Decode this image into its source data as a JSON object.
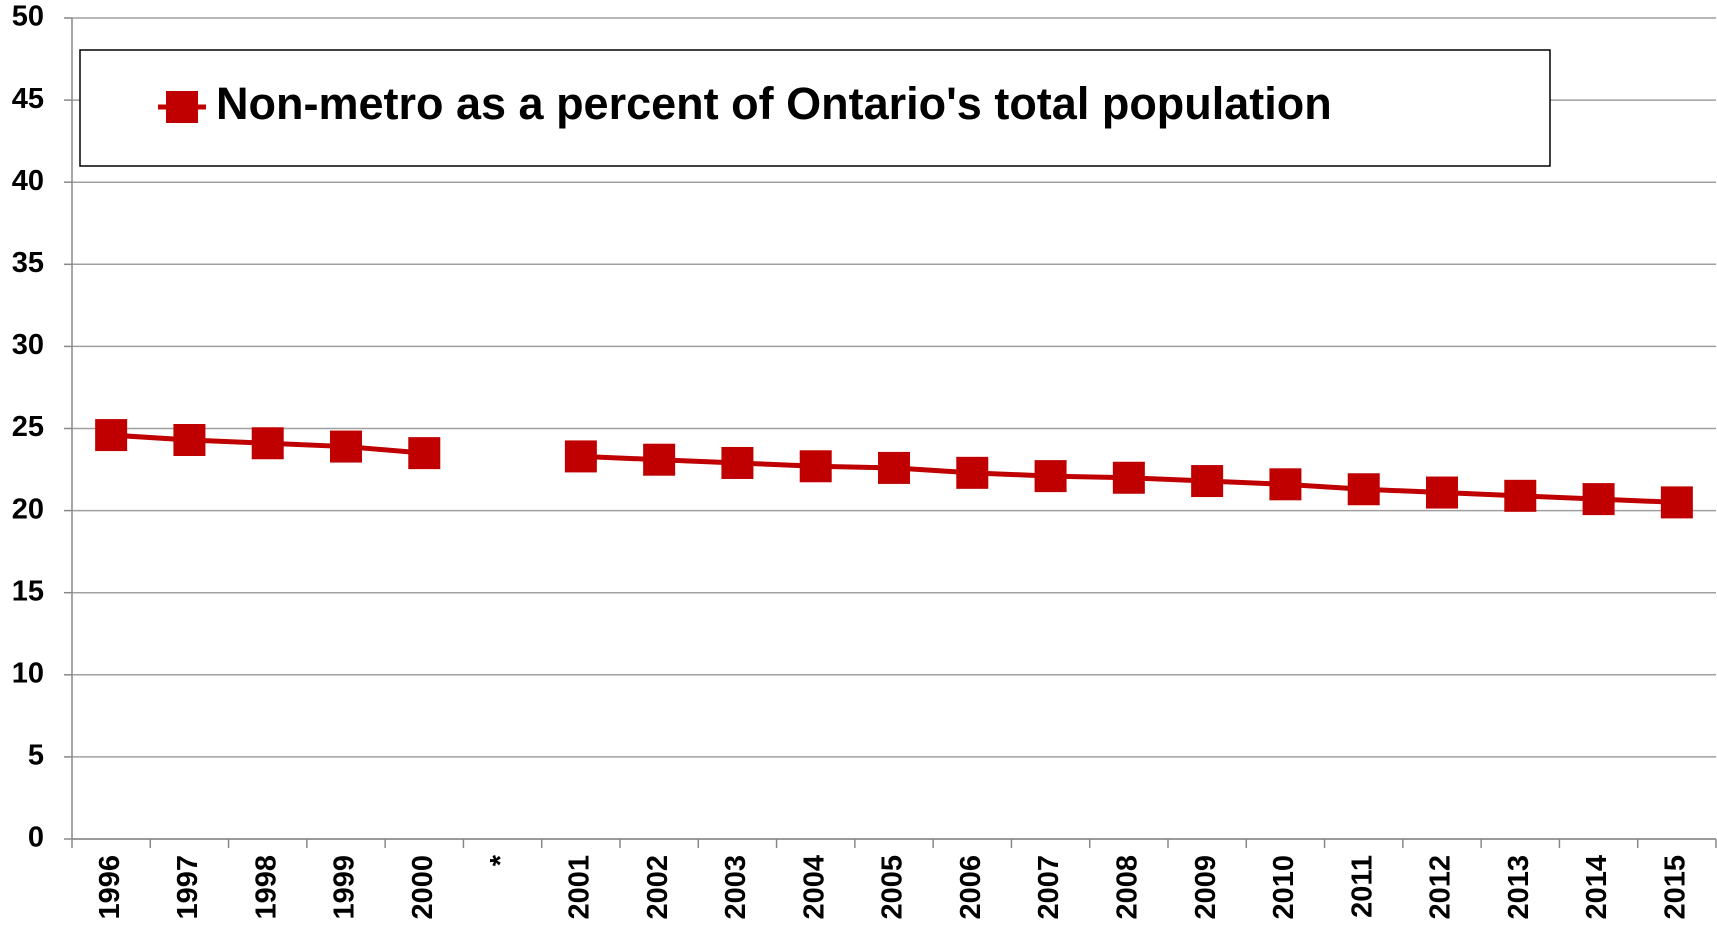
{
  "chart_data": {
    "type": "line",
    "categories": [
      "1996",
      "1997",
      "1998",
      "1999",
      "2000",
      "*",
      "2001",
      "2002",
      "2003",
      "2004",
      "2005",
      "2006",
      "2007",
      "2008",
      "2009",
      "2010",
      "2011",
      "2012",
      "2013",
      "2014",
      "2015"
    ],
    "series": [
      {
        "name": "Non-metro as a percent of Ontario's total population",
        "color": "#c00000",
        "values": [
          24.6,
          24.3,
          24.1,
          23.9,
          23.5,
          null,
          23.3,
          23.1,
          22.9,
          22.7,
          22.6,
          22.3,
          22.1,
          22.0,
          21.8,
          21.6,
          21.3,
          21.1,
          20.9,
          20.7,
          20.5
        ]
      }
    ],
    "ylim": [
      0,
      50
    ],
    "yticks": [
      0,
      5,
      10,
      15,
      20,
      25,
      30,
      35,
      40,
      45,
      50
    ],
    "grid": true,
    "legend": "top"
  }
}
